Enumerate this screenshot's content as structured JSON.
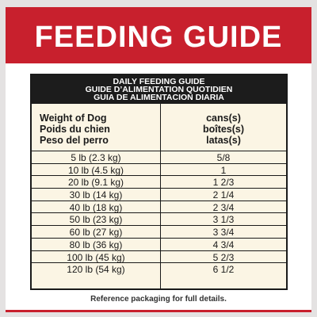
{
  "banner": {
    "title": "FEEDING GUIDE"
  },
  "table": {
    "header_lines": [
      "DAILY FEEDING GUIDE",
      "GUIDE D’ALIMENTATION QUOTIDIEN",
      "GUIA DE ALIMENTACION DIARIA"
    ],
    "column_weight": [
      "Weight of Dog",
      "Poids du chien",
      "Peso del perro"
    ],
    "column_cans": [
      "cans(s)",
      "boîtes(s)",
      "latas(s)"
    ],
    "rows": [
      {
        "weight": "5 lb (2.3 kg)",
        "cans": "5/8"
      },
      {
        "weight": "10 lb (4.5 kg)",
        "cans": "1"
      },
      {
        "weight": "20 lb (9.1 kg)",
        "cans": "1 2/3"
      },
      {
        "weight": "30 lb (14 kg)",
        "cans": "2 1/4"
      },
      {
        "weight": "40 lb (18 kg)",
        "cans": "2 3/4"
      },
      {
        "weight": "50 lb (23 kg)",
        "cans": "3 1/3"
      },
      {
        "weight": "60 lb (27 kg)",
        "cans": "3 3/4"
      },
      {
        "weight": "80 lb (36 kg)",
        "cans": "4 3/4"
      },
      {
        "weight": "100 lb (45 kg)",
        "cans": "5 2/3"
      },
      {
        "weight": "120 lb (54 kg)",
        "cans": "6 1/2"
      }
    ]
  },
  "footnote": "Reference packaging for full details.",
  "colors": {
    "brand_red": "#c8202d",
    "header_black": "#1c1c1c",
    "table_cream": "#fbf5e4",
    "page_gray": "#e4e2e2"
  }
}
